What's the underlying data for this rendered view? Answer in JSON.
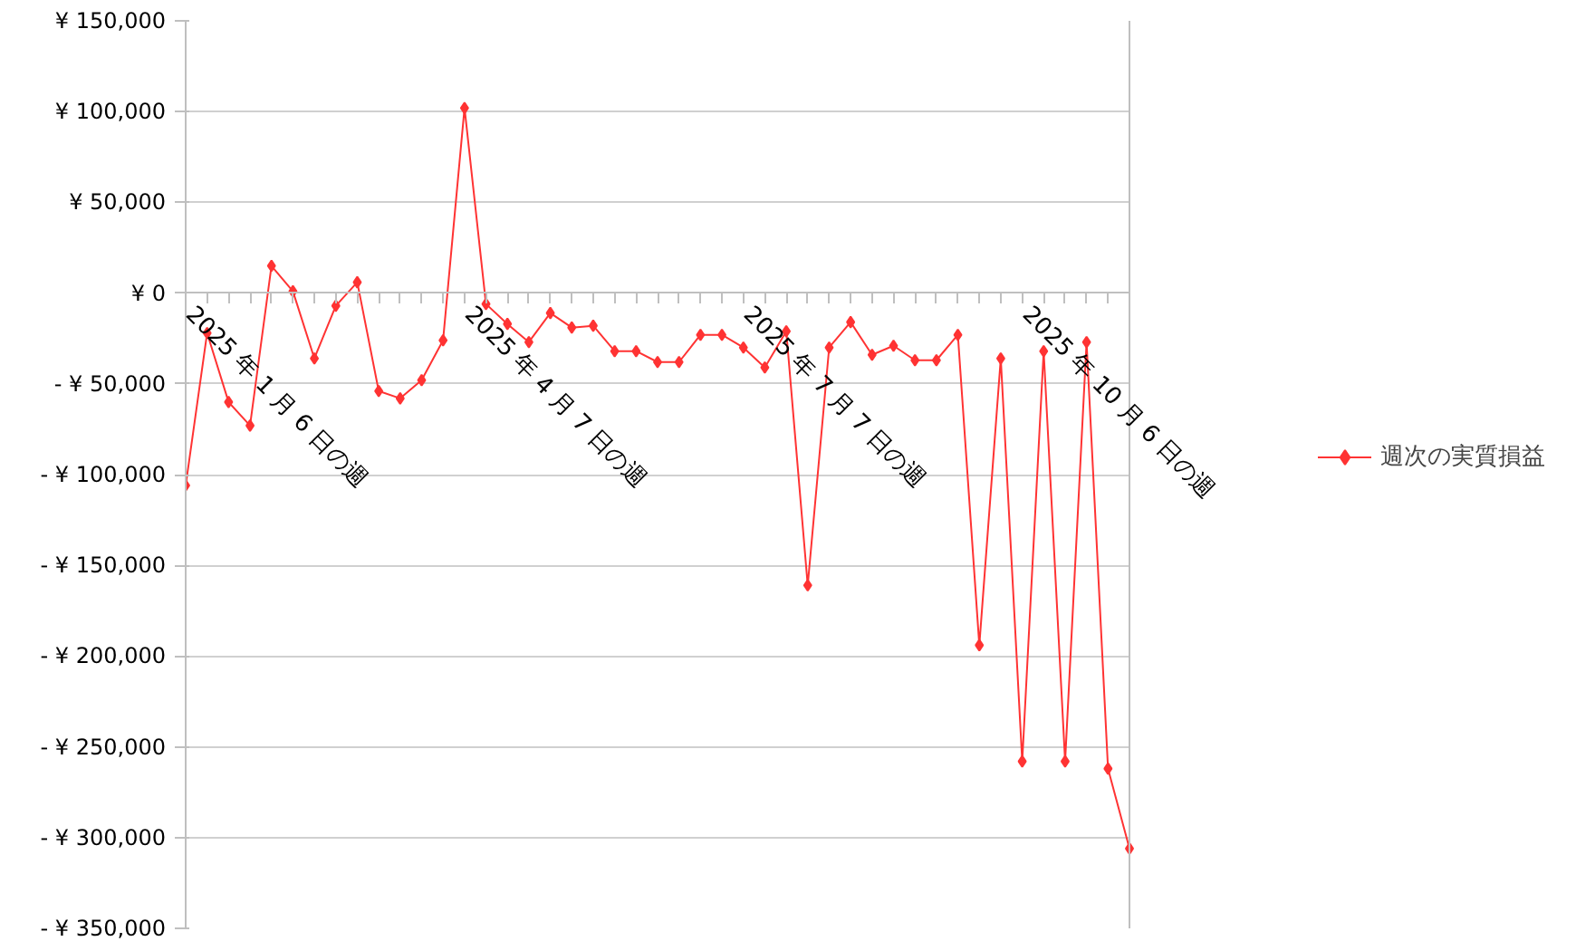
{
  "chart_data": {
    "type": "line",
    "categories": [
      "2025 年 1 月 6 日の週",
      null,
      null,
      null,
      null,
      null,
      null,
      null,
      null,
      null,
      null,
      null,
      null,
      "2025 年 4 月 7 日の週",
      null,
      null,
      null,
      null,
      null,
      null,
      null,
      null,
      null,
      null,
      null,
      null,
      "2025 年 7 月 7 日の週",
      null,
      null,
      null,
      null,
      null,
      null,
      null,
      null,
      null,
      null,
      null,
      null,
      "2025 年 10 月 6 日の週",
      null,
      null,
      null,
      null,
      null
    ],
    "series": [
      {
        "name": "週次の実質損益",
        "color": "#ff3333",
        "values": [
          -106000,
          -22000,
          -60000,
          -73000,
          15000,
          1000,
          -36000,
          -7000,
          6000,
          -54000,
          -58000,
          -48000,
          -26000,
          102000,
          -6000,
          -17000,
          -27000,
          -11000,
          -19000,
          -18000,
          -32000,
          -32000,
          -38000,
          -38000,
          -23000,
          -23000,
          -30000,
          -41000,
          -21000,
          -161000,
          -30000,
          -16000,
          -34000,
          -29000,
          -37000,
          -37000,
          -23000,
          -194000,
          -36000,
          -258000,
          -32000,
          -258000,
          -27000,
          -262000,
          -306000
        ]
      }
    ],
    "ylim": [
      -350000,
      150000
    ],
    "yticks": [
      {
        "value": 150000,
        "label": "¥ 150,000"
      },
      {
        "value": 100000,
        "label": "¥ 100,000"
      },
      {
        "value": 50000,
        "label": "¥ 50,000"
      },
      {
        "value": 0,
        "label": "¥ 0"
      },
      {
        "value": -50000,
        "label": "- ¥ 50,000"
      },
      {
        "value": -100000,
        "label": "- ¥ 100,000"
      },
      {
        "value": -150000,
        "label": "- ¥ 150,000"
      },
      {
        "value": -200000,
        "label": "- ¥ 200,000"
      },
      {
        "value": -250000,
        "label": "- ¥ 250,000"
      },
      {
        "value": -300000,
        "label": "- ¥ 300,000"
      },
      {
        "value": -350000,
        "label": "- ¥ 350,000"
      }
    ],
    "grid": "y",
    "legend": "right",
    "marker": "diamond",
    "line_style": "solid"
  }
}
